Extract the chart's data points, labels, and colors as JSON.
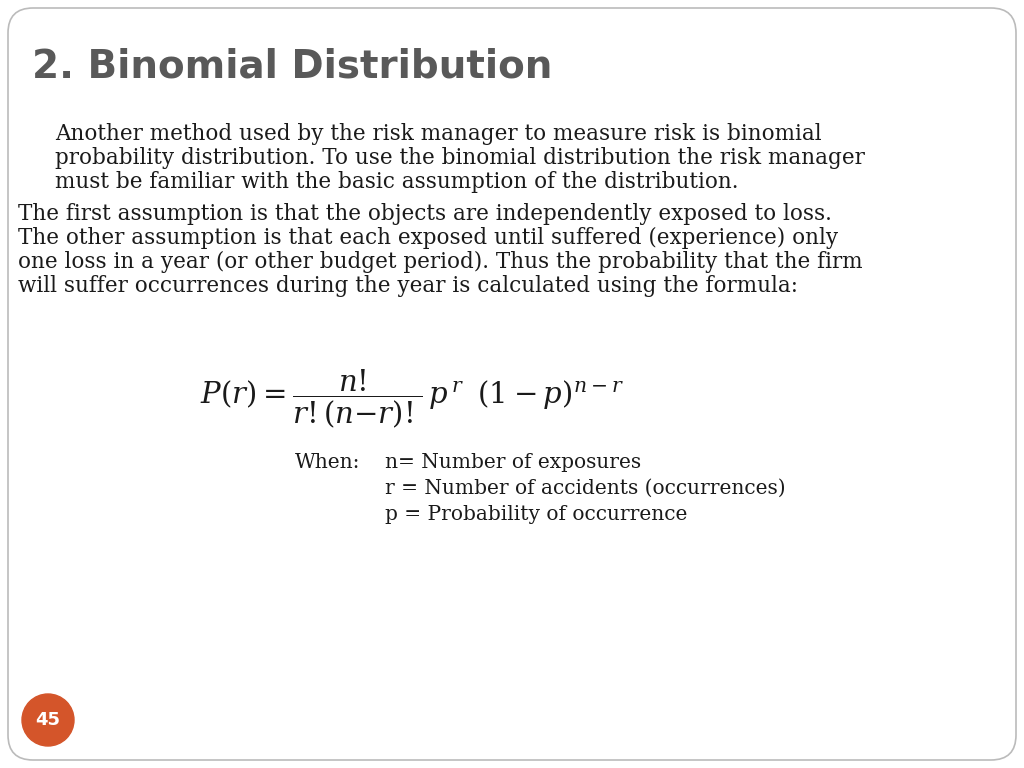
{
  "title": "2. Binomial Distribution",
  "title_color": "#595959",
  "title_fontsize": 28,
  "background_color": "#ffffff",
  "slide_border_color": "#bbbbbb",
  "page_number": "45",
  "page_number_bg": "#d4552a",
  "para1_line1": "Another method used by the risk manager to measure risk is binomial",
  "para1_line2": "probability distribution. To use the binomial distribution the risk manager",
  "para1_line3": "must be familiar with the basic assumption of the distribution.",
  "para2_line1": "The first assumption is that the objects are independently exposed to loss.",
  "para2_line2": "The other assumption is that each exposed until suffered (experience) only",
  "para2_line3": "one loss in a year (or other budget period). Thus the probability that the firm",
  "para2_line4": "will suffer occurrences during the year is calculated using the formula:",
  "when_label": "When:",
  "def1": "n= Number of exposures",
  "def2": "r = Number of accidents (occurrences)",
  "def3": "p = Probability of occurrence",
  "text_color": "#1a1a1a",
  "body_fontsize": 15.5,
  "def_fontsize": 14.5
}
